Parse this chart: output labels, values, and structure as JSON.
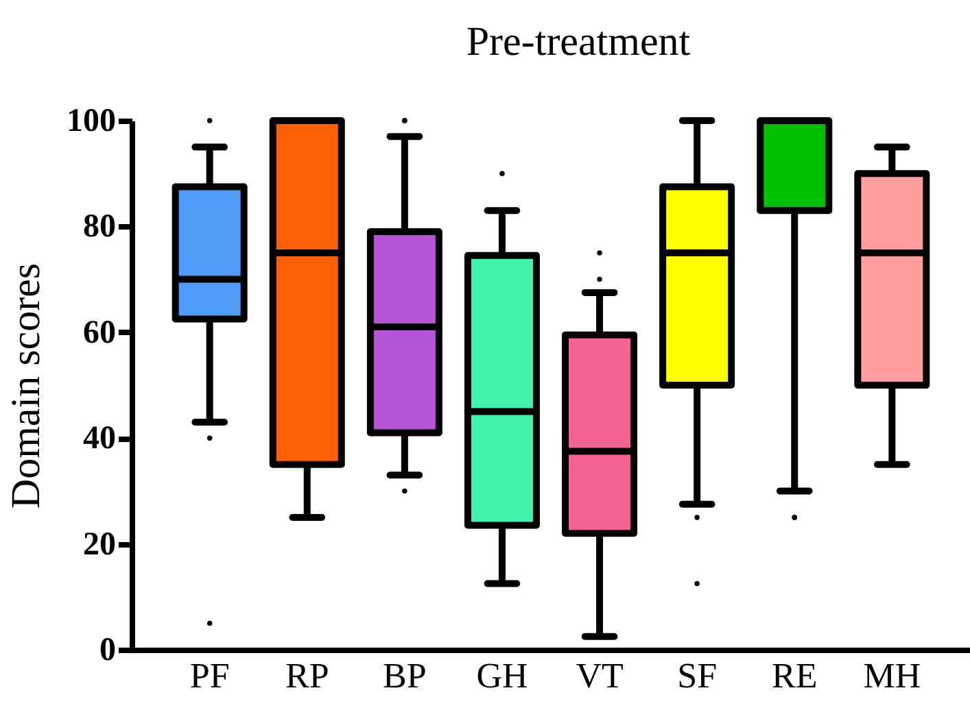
{
  "chart_data": {
    "type": "box",
    "title": "Pre-treatment",
    "ylabel": "Domain scores",
    "categories": [
      "PF",
      "RP",
      "BP",
      "GH",
      "VT",
      "SF",
      "RE",
      "MH"
    ],
    "colors": [
      "#4f9bf8",
      "#fe5f00",
      "#b655d6",
      "#44f2b0",
      "#f56495",
      "#ffff00",
      "#00c000",
      "#fe9d9c"
    ],
    "boxes": [
      {
        "low": 43,
        "q1": 62.5,
        "median": 70,
        "q3": 87.5,
        "high": 95,
        "outliers": [
          100,
          40,
          5
        ]
      },
      {
        "low": 25,
        "q1": 35,
        "median": 75,
        "q3": 100,
        "high": 100
      },
      {
        "low": 33,
        "q1": 41,
        "median": 61,
        "q3": 79,
        "high": 97,
        "outliers": [
          100,
          100,
          30
        ]
      },
      {
        "low": 12.5,
        "q1": 23.5,
        "median": 45,
        "q3": 74.5,
        "high": 83,
        "outliers": [
          90
        ]
      },
      {
        "low": 2.5,
        "q1": 22,
        "median": 37.5,
        "q3": 59.5,
        "high": 67.5,
        "outliers": [
          75,
          70
        ]
      },
      {
        "low": 27.5,
        "q1": 50,
        "median": 75,
        "q3": 87.5,
        "high": 100,
        "outliers": [
          25,
          12.5
        ]
      },
      {
        "low": 30,
        "q1": 83,
        "median": 100,
        "q3": 100,
        "high": 100,
        "outliers": [
          25,
          25
        ]
      },
      {
        "low": 35,
        "q1": 50,
        "median": 75,
        "q3": 90,
        "high": 95
      }
    ],
    "ylim": [
      0,
      100
    ],
    "yticks": [
      0,
      20,
      40,
      60,
      80,
      100
    ],
    "grid": false,
    "legend": false
  }
}
